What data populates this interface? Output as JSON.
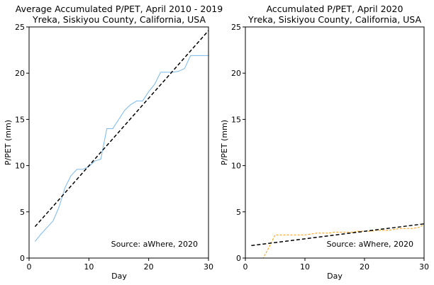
{
  "chart_data": [
    {
      "type": "line",
      "title": "Average Accumulated P/PET, April 2010 - 2019",
      "subtitle": "Yreka, Siskiyou County, California, USA",
      "xlabel": "Day",
      "ylabel": "P/PET (mm)",
      "xlim": [
        0,
        30
      ],
      "ylim": [
        0,
        25
      ],
      "xticks": [
        0,
        10,
        20,
        30
      ],
      "yticks": [
        0,
        5,
        10,
        15,
        20,
        25
      ],
      "grid": false,
      "annotation": "Source: aWhere, 2020",
      "series": [
        {
          "style": "solid",
          "color": "#7ab8e8",
          "x": [
            1,
            2,
            3,
            4,
            5,
            6,
            7,
            8,
            9,
            10,
            11,
            12,
            13,
            14,
            15,
            16,
            17,
            18,
            19,
            20,
            21,
            22,
            23,
            24,
            25,
            26,
            27,
            28,
            29,
            30
          ],
          "y": [
            1.8,
            2.6,
            3.3,
            4.0,
            5.5,
            7.6,
            8.9,
            9.6,
            9.6,
            9.9,
            10.5,
            10.7,
            14.0,
            14.0,
            15.0,
            16.0,
            16.6,
            17.0,
            17.0,
            18.0,
            18.8,
            20.1,
            20.1,
            20.1,
            20.2,
            20.5,
            21.9,
            21.9,
            21.9,
            21.9
          ]
        },
        {
          "style": "dashed",
          "color": "#000000",
          "x": [
            1,
            30
          ],
          "y": [
            3.4,
            24.6
          ]
        }
      ]
    },
    {
      "type": "line",
      "title": "Accumulated P/PET, April 2020",
      "subtitle": "Yreka, Siskiyou County, California, USA",
      "xlabel": "Day",
      "ylabel": "P/PET (mm)",
      "xlim": [
        0,
        30
      ],
      "ylim": [
        0,
        25
      ],
      "xticks": [
        0,
        10,
        20,
        30
      ],
      "yticks": [
        0,
        5,
        10,
        15,
        20,
        25
      ],
      "grid": false,
      "annotation": "Source: aWhere, 2020",
      "series": [
        {
          "style": "dashed",
          "color": "#ff9900",
          "x": [
            1,
            2,
            3,
            4,
            5,
            6,
            7,
            8,
            9,
            10,
            11,
            12,
            13,
            14,
            15,
            16,
            17,
            18,
            19,
            20,
            21,
            22,
            23,
            24,
            25,
            26,
            27,
            28,
            29,
            30
          ],
          "y": [
            0.0,
            0.0,
            0.0,
            1.2,
            2.5,
            2.5,
            2.5,
            2.5,
            2.5,
            2.5,
            2.6,
            2.7,
            2.7,
            2.7,
            2.8,
            2.8,
            2.8,
            2.8,
            2.9,
            2.9,
            2.9,
            3.0,
            3.0,
            3.0,
            3.1,
            3.2,
            3.2,
            3.2,
            3.3,
            3.6
          ]
        },
        {
          "style": "dashed",
          "color": "#000000",
          "x": [
            1,
            30
          ],
          "y": [
            1.35,
            3.7
          ]
        }
      ]
    }
  ]
}
